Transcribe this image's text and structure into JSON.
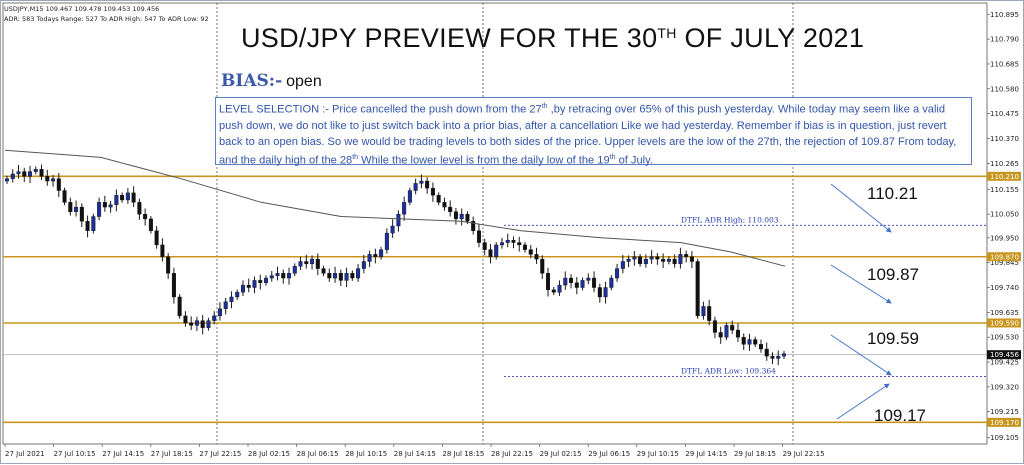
{
  "header": {
    "line1": "USDJPY,M15  109.467 109.478 109.453 109.456",
    "line2": "ADR: 583  Todays Range: 527  To ADR High: 547  To ADR Low: 92"
  },
  "title": {
    "prefix": "USD/JPY PREVIEW FOR THE 30",
    "sup": "TH",
    "suffix": " OF JULY 2021"
  },
  "bias": {
    "label": "BIAS:-",
    "value": "open"
  },
  "note": {
    "p1": "LEVEL SELECTION :- Price cancelled the push down from the 27",
    "p1_sup": "th",
    "p2": " ,by retracing over 65% of this push yesterday. While today may seem like a valid push down, we do not like to just switch back into a prior bias, after a cancellation Like we had yesterday. Remember if bias is in question, just revert back to an open bias. So we would be trading levels to both sides of the price. Upper levels are the low of the 27th, the rejection of 109.87 From today, and the daily high of the 28",
    "p2_sup": "th",
    "p3": "  While the lower level is from the daily low of the 19",
    "p3_sup": "th",
    "p4": " of July."
  },
  "levels": {
    "l1": "110.21",
    "l2": "109.87",
    "l3": "109.59",
    "l4": "109.17"
  },
  "chart_data": {
    "type": "candlestick",
    "symbol": "USDJPY",
    "timeframe": "M15",
    "ylim": [
      109.07,
      110.93
    ],
    "y_ticks": [
      "110.895",
      "110.790",
      "110.685",
      "110.580",
      "110.475",
      "110.370",
      "110.265",
      "110.155",
      "110.050",
      "109.950",
      "109.845",
      "109.740",
      "109.635",
      "109.530",
      "109.425",
      "109.320",
      "109.215",
      "109.105"
    ],
    "x_ticks": [
      "27 Jul 2021",
      "27 Jul 10:15",
      "27 Jul 14:15",
      "27 Jul 18:15",
      "27 Jul 22:15",
      "28 Jul 02:15",
      "28 Jul 06:15",
      "28 Jul 10:15",
      "28 Jul 14:15",
      "28 Jul 18:15",
      "28 Jul 22:15",
      "29 Jul 02:15",
      "29 Jul 06:15",
      "29 Jul 10:15",
      "29 Jul 14:15",
      "29 Jul 18:15",
      "29 Jul 22:15"
    ],
    "horizontal_levels": [
      {
        "price": 110.21,
        "label": "110.210"
      },
      {
        "price": 109.87,
        "label": "109.870"
      },
      {
        "price": 109.59,
        "label": "109.590"
      },
      {
        "price": 109.17,
        "label": "109.170"
      }
    ],
    "current_price": {
      "price": 109.456,
      "label": "109.456"
    },
    "adr_high": {
      "price": 110.003,
      "label": "DTFL ADR High: 110.003"
    },
    "adr_low": {
      "price": 109.364,
      "label": "DTFL ADR Low: 109.364"
    },
    "closes": [
      110.2,
      110.22,
      110.23,
      110.21,
      110.23,
      110.24,
      110.21,
      110.19,
      110.2,
      110.15,
      110.1,
      110.06,
      110.08,
      110.02,
      109.98,
      110.04,
      110.1,
      110.08,
      110.09,
      110.13,
      110.11,
      110.14,
      110.1,
      110.05,
      110.03,
      109.98,
      109.92,
      109.87,
      109.8,
      109.7,
      109.62,
      109.59,
      109.58,
      109.6,
      109.57,
      109.6,
      109.62,
      109.65,
      109.68,
      109.7,
      109.72,
      109.75,
      109.74,
      109.77,
      109.76,
      109.78,
      109.79,
      109.8,
      109.78,
      109.8,
      109.83,
      109.85,
      109.84,
      109.86,
      109.82,
      109.8,
      109.78,
      109.8,
      109.77,
      109.8,
      109.78,
      109.82,
      109.85,
      109.88,
      109.87,
      109.9,
      109.97,
      110.0,
      110.05,
      110.1,
      110.15,
      110.18,
      110.19,
      110.16,
      110.13,
      110.1,
      110.08,
      110.06,
      110.03,
      110.05,
      110.02,
      109.98,
      109.93,
      109.9,
      109.87,
      109.92,
      109.93,
      109.94,
      109.93,
      109.92,
      109.9,
      109.88,
      109.86,
      109.8,
      109.73,
      109.72,
      109.75,
      109.78,
      109.76,
      109.74,
      109.77,
      109.78,
      109.74,
      109.7,
      109.74,
      109.78,
      109.82,
      109.85,
      109.86,
      109.87,
      109.84,
      109.86,
      109.87,
      109.86,
      109.85,
      109.86,
      109.84,
      109.88,
      109.87,
      109.85,
      109.62,
      109.66,
      109.6,
      109.55,
      109.53,
      109.58,
      109.56,
      109.53,
      109.5,
      109.52,
      109.5,
      109.48,
      109.45,
      109.44,
      109.45,
      109.46
    ]
  }
}
